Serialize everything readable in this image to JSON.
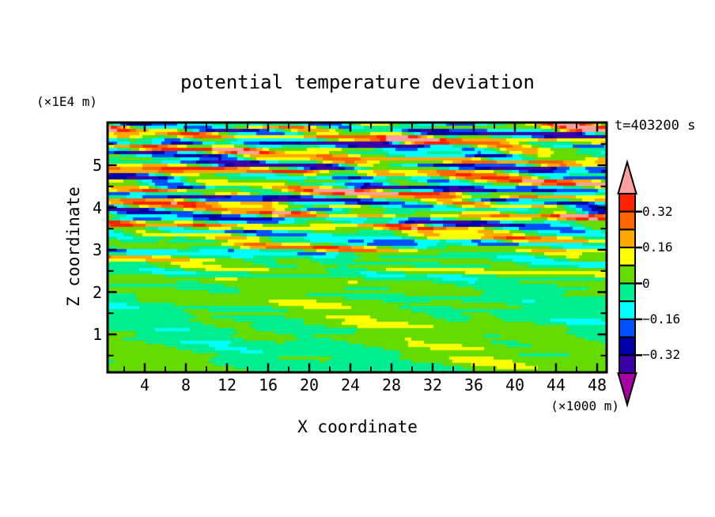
{
  "title": "potential temperature deviation",
  "time_label": "t=403200 s",
  "y_axis": {
    "label": "Z coordinate",
    "unit_label": "(×1E4 m)",
    "major_ticks": [
      1,
      2,
      3,
      4,
      5
    ],
    "minor_ticks": [
      0.5,
      1.5,
      2.5,
      3.5,
      4.5,
      5.5
    ]
  },
  "x_axis": {
    "label": "X coordinate",
    "unit_label": "(×1000 m)",
    "major_ticks": [
      4,
      8,
      12,
      16,
      20,
      24,
      28,
      32,
      36,
      40,
      44,
      48
    ],
    "minor_ticks": [
      2,
      6,
      10,
      14,
      18,
      22,
      26,
      30,
      34,
      38,
      42,
      46
    ]
  },
  "colorbar": {
    "tick_labels": [
      "0.32",
      "0.16",
      "0",
      "−0.16",
      "−0.32"
    ],
    "labeled_levels": [
      0.32,
      0.16,
      0,
      -0.16,
      -0.32
    ],
    "segment_colors_top_to_bottom": [
      "#FF2200",
      "#FF6400",
      "#FFA800",
      "#FFFF00",
      "#64DC00",
      "#00EE90",
      "#00FFFF",
      "#0050FF",
      "#0000AA",
      "#3C00A8"
    ],
    "arrow_top_color": "#FFA0A0",
    "arrow_bottom_color": "#A800A8"
  },
  "chart_data": {
    "type": "heatmap",
    "subtype": "filled-contour-cross-section",
    "title": "potential temperature deviation",
    "xlabel": "X coordinate",
    "x_units": "(×1000 m)",
    "ylabel": "Z coordinate",
    "y_units": "(×1E4 m)",
    "time_annotation": "t=403200 s",
    "x_ticks": [
      4,
      8,
      12,
      16,
      20,
      24,
      28,
      32,
      36,
      40,
      44,
      48
    ],
    "y_ticks": [
      1,
      2,
      3,
      4,
      5
    ],
    "x_range_approx": [
      0.4,
      48.9
    ],
    "y_range_approx": [
      0.1,
      6.0
    ],
    "contour_levels": [
      -0.4,
      -0.32,
      -0.24,
      -0.16,
      -0.08,
      0,
      0.08,
      0.16,
      0.24,
      0.32,
      0.4
    ],
    "contour_interval": 0.08,
    "palette_low_to_high": [
      "#A800A8",
      "#3C00A8",
      "#0000AA",
      "#0050FF",
      "#00FFFF",
      "#00EE90",
      "#64DC00",
      "#FFFF00",
      "#FFA800",
      "#FF6400",
      "#FF2200",
      "#FFA0A0"
    ],
    "legend_position": "right-vertical-colorbar-with-end-arrows",
    "grid": false,
    "description": "Turbulent horizontally-layered temperature deviation field: intense alternating red/pink (>+0.32) and navy/violet (<-0.24) striated bands in the upper half (z≈3.5–6×1E4 m), weaker yellow/orange/cyan streaks mid-level, and near-zero quiescent green (±0.08) below z≈2×1E4 m."
  }
}
